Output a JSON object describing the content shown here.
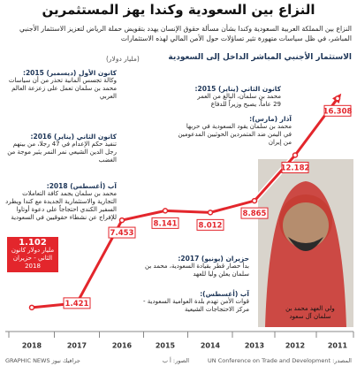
{
  "header": {
    "title": "النزاع بين السعودية وكندا يهز المستثمرين",
    "subtitle": "النزاع بين المملكة العربية السعودية وكندا بشأن مسألة حقوق الإنسان يهدد بتقويض حملة الرياض لتعزيز الاستثمار الأجنبي المباشر، في ظل سياسات متهورة تثير تساؤلات حول الأمن المالي لهذه الاستثمارات"
  },
  "chart_data": {
    "type": "line",
    "title": "الاستثمار الأجنبي المباشر الداخل إلى السعودية",
    "unit": "(مليار دولار)",
    "categories": [
      "2018",
      "2017",
      "2016",
      "2015",
      "2014",
      "2013",
      "2012",
      "2011"
    ],
    "values": [
      1.102,
      1.421,
      7.453,
      8.141,
      8.012,
      8.865,
      12.182,
      16.308
    ],
    "last_value_note": "مليار دولار كانون الثاني - حزيران 2018",
    "color": "#e3262c",
    "ylim": [
      0,
      18
    ]
  },
  "annotations": [
    {
      "heading": "كانون الأول (ديسمبر) 2015:",
      "text": "وكالة تجسس ألمانية تحذر من أن سياسات محمد بن سلمان تعمل على زعزعة العالم العربي"
    },
    {
      "heading": "كانون الثاني (يناير) 2016:",
      "text": "تنفيذ حكم الإعدام في 47 رجلا، من بينهم رجل الدين الشيعي نمر النمر يثير موجة من الغضب"
    },
    {
      "heading": "آب (أغسطس) 2018:",
      "text": "محمد بن سلمان يجمد كافة التعاملات التجارية والاستثمارية الجديدة مع كندا ويطرد السفير الكندي احتجاجاً على دعوة أوتاوا للإفراج عن نشطاء حقوقيين في السعودية"
    },
    {
      "heading": "كانون الثاني (يناير) 2015:",
      "text": "محمد بن سلمان، البالغ من العمر 29 عاماً، يصبح وزيراً للدفاع"
    },
    {
      "heading": "آذار (مارس):",
      "text": "محمد بن سلمان يقود السعودية في حربها في اليمن ضد المتمردين الحوثيين المدعومين من إيران"
    },
    {
      "heading": "حزيران (يونيو) 2017:",
      "text": "بدأ حصار قطر بقيادة السعودية، محمد بن سلمان يعلن وليا للعهد"
    },
    {
      "heading": "آب (أغسطس):",
      "text": "قوات الأمن تهدم بلدة العوامية السعودية - مركز الاحتجاجات الشيعية"
    }
  ],
  "photo_caption": "ولي العهد محمد بن سلمان آل سعود",
  "footer": {
    "source": "المصدر: UN Conference on Trade and Development",
    "photo_credit": "الصور: أ ب",
    "brand": "GRAPHIC NEWS جرافيك نيوز"
  }
}
